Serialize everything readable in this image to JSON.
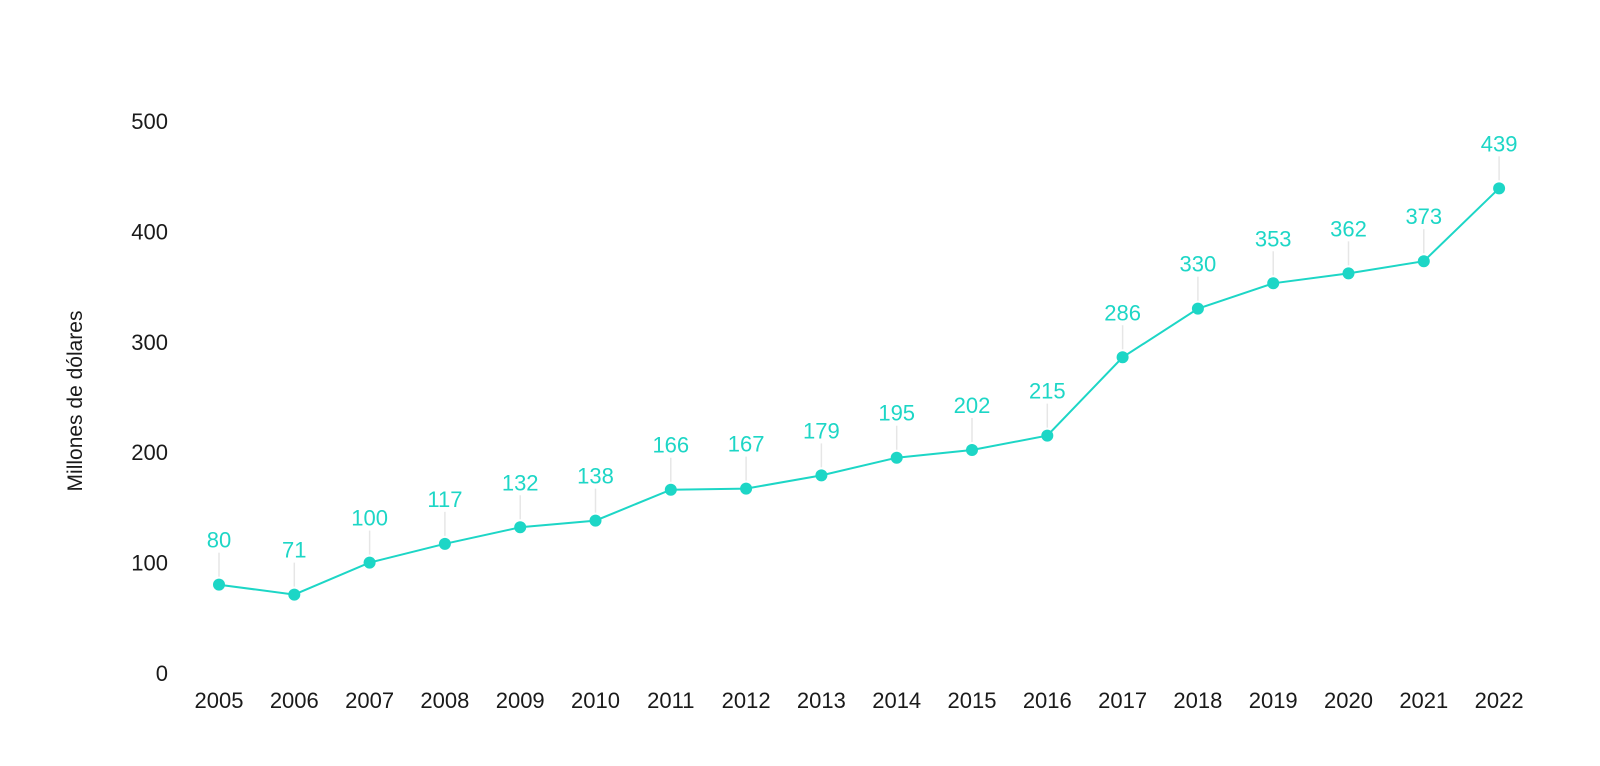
{
  "chart_data": {
    "type": "line",
    "title": "",
    "xlabel": "",
    "ylabel": "Millones de dólares",
    "ylim": [
      0,
      500
    ],
    "yticks": [
      0,
      100,
      200,
      300,
      400,
      500
    ],
    "grid": false,
    "legend": "none",
    "color": "#1dd6c6",
    "x": [
      "2005",
      "2006",
      "2007",
      "2008",
      "2009",
      "2010",
      "2011",
      "2012",
      "2013",
      "2014",
      "2015",
      "2016",
      "2017",
      "2018",
      "2019",
      "2020",
      "2021",
      "2022"
    ],
    "series": [
      {
        "values": [
          80,
          71,
          100,
          117,
          132,
          138,
          166,
          167,
          179,
          195,
          202,
          215,
          286,
          330,
          353,
          362,
          373,
          439
        ]
      }
    ]
  }
}
